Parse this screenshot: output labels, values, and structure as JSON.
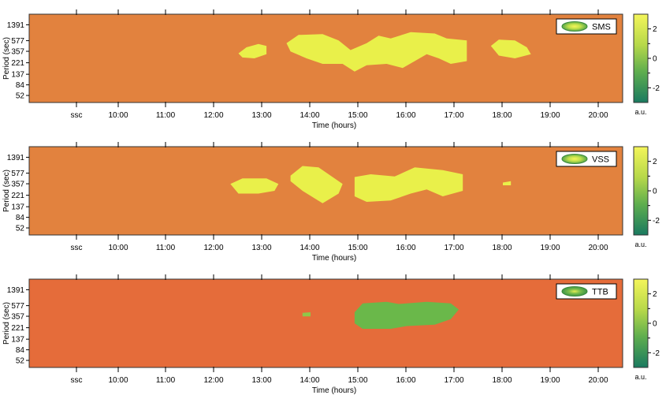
{
  "chart_data": [
    {
      "type": "heatmap",
      "legend": {
        "label": "SMS",
        "color": "#e9f04a"
      },
      "xlabel": "Time (hours)",
      "ylabel": "Period (sec)",
      "x_ticks": [
        "ssc",
        "10:00",
        "11:00",
        "12:00",
        "13:00",
        "14:00",
        "15:00",
        "16:00",
        "17:00",
        "18:00",
        "19:00",
        "20:00"
      ],
      "y_ticks": [
        "1391",
        "577",
        "357",
        "221",
        "137",
        "84",
        "52"
      ],
      "colorbar": {
        "ticks": [
          "2",
          "0",
          "-2"
        ],
        "unit": "a.u.",
        "range": [
          -3,
          3
        ]
      },
      "background_color": "#e2823e",
      "regions": [
        {
          "color": "#e9f04a",
          "points": [
            [
              "12:30",
              178
            ],
            [
              "12:40",
              200
            ],
            [
              "12:55",
              212
            ],
            [
              "13:05",
              205
            ],
            [
              "13:05",
              175
            ],
            [
              "12:50",
              160
            ],
            [
              "12:35",
              163
            ]
          ]
        },
        {
          "color": "#e9f04a",
          "points": [
            [
              "13:30",
              215
            ],
            [
              "13:45",
              245
            ],
            [
              "14:15",
              248
            ],
            [
              "14:35",
              225
            ],
            [
              "14:50",
              190
            ],
            [
              "15:10",
              215
            ],
            [
              "15:25",
              242
            ],
            [
              "15:40",
              232
            ],
            [
              "16:05",
              255
            ],
            [
              "16:35",
              250
            ],
            [
              "16:50",
              232
            ],
            [
              "17:15",
              225
            ],
            [
              "17:15",
              150
            ],
            [
              "16:55",
              140
            ],
            [
              "16:40",
              160
            ],
            [
              "16:25",
              175
            ],
            [
              "16:10",
              150
            ],
            [
              "15:55",
              125
            ],
            [
              "15:35",
              140
            ],
            [
              "15:10",
              135
            ],
            [
              "14:55",
              112
            ],
            [
              "14:40",
              140
            ],
            [
              "14:15",
              140
            ],
            [
              "13:55",
              160
            ],
            [
              "13:35",
              185
            ]
          ]
        },
        {
          "color": "#e9f04a",
          "points": [
            [
              "17:45",
              205
            ],
            [
              "17:55",
              228
            ],
            [
              "18:15",
              225
            ],
            [
              "18:30",
              200
            ],
            [
              "18:35",
              175
            ],
            [
              "18:15",
              160
            ],
            [
              "17:55",
              170
            ]
          ]
        }
      ]
    },
    {
      "type": "heatmap",
      "legend": {
        "label": "VSS",
        "color": "#e9f04a"
      },
      "xlabel": "Time (hours)",
      "ylabel": "Period (sec)",
      "x_ticks": [
        "ssc",
        "10:00",
        "11:00",
        "12:00",
        "13:00",
        "14:00",
        "15:00",
        "16:00",
        "17:00",
        "18:00",
        "19:00",
        "20:00"
      ],
      "y_ticks": [
        "1391",
        "577",
        "357",
        "221",
        "137",
        "84",
        "52"
      ],
      "colorbar": {
        "ticks": [
          "2",
          "0",
          "-2"
        ],
        "unit": "a.u.",
        "range": [
          -3,
          3
        ]
      },
      "background_color": "#e2823e",
      "regions": [
        {
          "color": "#e9f04a",
          "points": [
            [
              "12:20",
              185
            ],
            [
              "12:35",
              205
            ],
            [
              "13:05",
              205
            ],
            [
              "13:20",
              185
            ],
            [
              "13:15",
              160
            ],
            [
              "12:55",
              150
            ],
            [
              "12:30",
              150
            ]
          ]
        },
        {
          "color": "#e9f04a",
          "points": [
            [
              "13:35",
              215
            ],
            [
              "13:50",
              250
            ],
            [
              "14:10",
              245
            ],
            [
              "14:40",
              185
            ],
            [
              "14:35",
              150
            ],
            [
              "14:15",
              115
            ],
            [
              "13:50",
              160
            ],
            [
              "13:35",
              195
            ]
          ]
        },
        {
          "color": "#e9f04a",
          "points": [
            [
              "14:55",
              210
            ],
            [
              "15:15",
              220
            ],
            [
              "15:45",
              212
            ],
            [
              "16:10",
              245
            ],
            [
              "16:45",
              235
            ],
            [
              "17:10",
              220
            ],
            [
              "17:10",
              160
            ],
            [
              "16:45",
              140
            ],
            [
              "16:25",
              165
            ],
            [
              "16:05",
              150
            ],
            [
              "15:40",
              125
            ],
            [
              "15:10",
              120
            ],
            [
              "14:55",
              140
            ]
          ]
        },
        {
          "color": "#e9f04a",
          "points": [
            [
              "18:00",
              190
            ],
            [
              "18:10",
              195
            ],
            [
              "18:10",
              180
            ],
            [
              "18:00",
              180
            ]
          ]
        }
      ]
    },
    {
      "type": "heatmap",
      "legend": {
        "label": "TTB",
        "color": "#6ab84a"
      },
      "xlabel": "Time (hours)",
      "ylabel": "Period (sec)",
      "x_ticks": [
        "ssc",
        "10:00",
        "11:00",
        "12:00",
        "13:00",
        "14:00",
        "15:00",
        "16:00",
        "17:00",
        "18:00",
        "19:00",
        "20:00"
      ],
      "y_ticks": [
        "1391",
        "577",
        "357",
        "221",
        "137",
        "84",
        "52"
      ],
      "colorbar": {
        "ticks": [
          "2",
          "0",
          "-2"
        ],
        "unit": "a.u.",
        "range": [
          -3,
          3
        ]
      },
      "background_color": "#e56c3a",
      "regions": [
        {
          "color": "#8ec84a",
          "points": [
            [
              "13:50",
              198
            ],
            [
              "14:00",
              200
            ],
            [
              "14:00",
              185
            ],
            [
              "13:50",
              185
            ]
          ]
        },
        {
          "color": "#6ab84a",
          "points": [
            [
              "14:55",
              200
            ],
            [
              "15:05",
              232
            ],
            [
              "15:35",
              238
            ],
            [
              "15:50",
              230
            ],
            [
              "16:25",
              238
            ],
            [
              "16:55",
              232
            ],
            [
              "17:05",
              210
            ],
            [
              "16:55",
              175
            ],
            [
              "16:35",
              155
            ],
            [
              "16:00",
              150
            ],
            [
              "15:40",
              140
            ],
            [
              "15:05",
              140
            ],
            [
              "14:55",
              160
            ]
          ]
        }
      ]
    }
  ]
}
